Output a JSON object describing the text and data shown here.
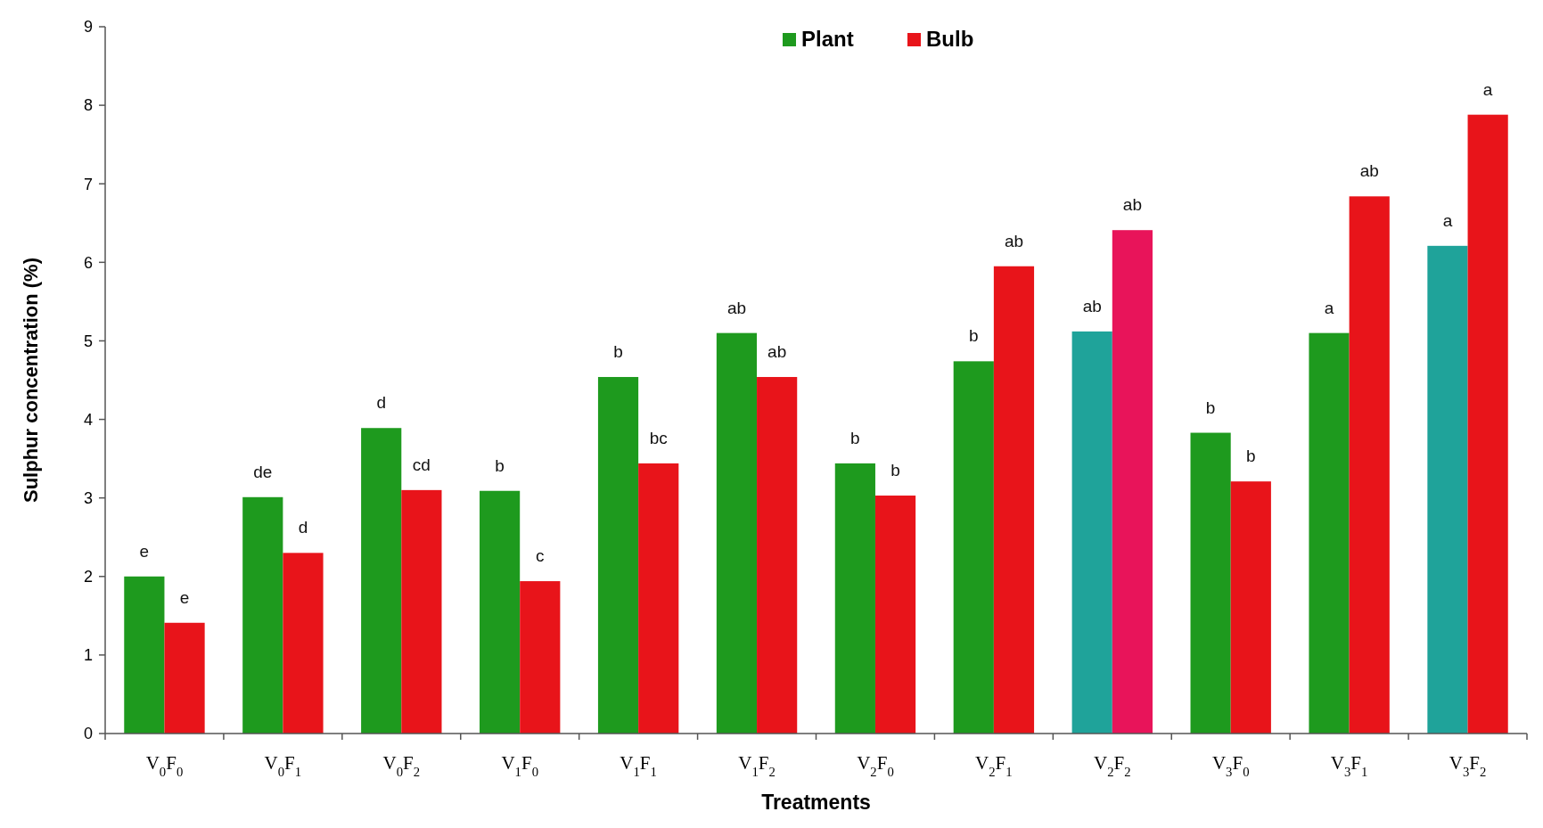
{
  "chart_data": {
    "type": "bar",
    "xlabel": "Treatments",
    "ylabel": "Sulphur concentration (%)",
    "categories": [
      "V$_{0}$F$_{0}$",
      "V$_{0}$F$_{1}$",
      "V$_{0}$F$_{2}$",
      "V$_{1}$F$_{0}$",
      "V$_{1}$F$_{1}$",
      "V$_{1}$F$_{2}$",
      "V$_{2}$F$_{0}$",
      "V$_{2}$F$_{1}$",
      "V$_{2}$F$_{2}$",
      "V$_{3}$F$_{0}$",
      "V$_{3}$F$_{1}$",
      "V$_{3}$F$_{2}$"
    ],
    "series": [
      {
        "name": "Plant",
        "color": "#1e9a1e",
        "colors": [
          "#1e9a1e",
          "#1e9a1e",
          "#1e9a1e",
          "#1e9a1e",
          "#1e9a1e",
          "#1e9a1e",
          "#1e9a1e",
          "#1e9a1e",
          "#1fa39a",
          "#1e9a1e",
          "#1e9a1e",
          "#1fa39a"
        ],
        "values": [
          2.0,
          3.01,
          3.89,
          3.09,
          4.54,
          5.1,
          3.44,
          4.74,
          5.12,
          3.83,
          5.1,
          6.21
        ],
        "value_labels": [
          "e",
          "de",
          "d",
          "b",
          "b",
          "ab",
          "b",
          "b",
          "ab",
          "b",
          "a",
          "a"
        ]
      },
      {
        "name": "Bulb",
        "color": "#e8141a",
        "colors": [
          "#e8141a",
          "#e8141a",
          "#e8141a",
          "#e8141a",
          "#e8141a",
          "#e8141a",
          "#e8141a",
          "#e8141a",
          "#e8145a",
          "#e8141a",
          "#e8141a",
          "#e8141a"
        ],
        "values": [
          1.41,
          2.3,
          3.1,
          1.94,
          3.44,
          4.54,
          3.03,
          5.95,
          6.41,
          3.21,
          6.84,
          7.88
        ],
        "value_labels": [
          "e",
          "d",
          "cd",
          "c",
          "bc",
          "ab",
          "b",
          "ab",
          "ab",
          "b",
          "ab",
          "a"
        ]
      }
    ],
    "ylim": [
      0,
      9
    ],
    "yticks": [
      0,
      1,
      2,
      3,
      4,
      5,
      6,
      7,
      8,
      9
    ],
    "grid": false,
    "legend": "top"
  }
}
